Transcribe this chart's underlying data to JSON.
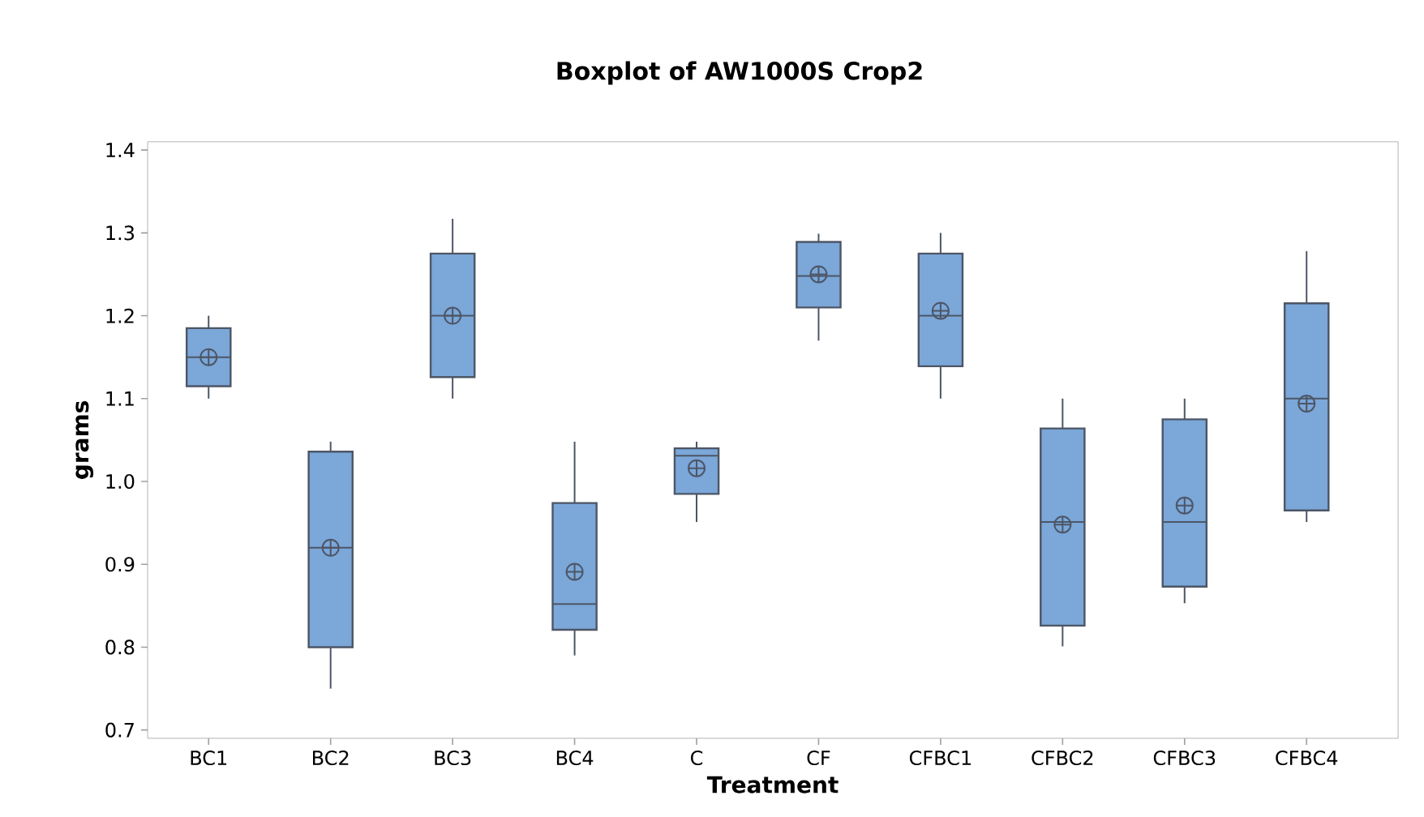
{
  "chart_data": {
    "type": "box",
    "title": "Boxplot of AW1000S Crop2",
    "xlabel": "Treatment",
    "ylabel": "grams",
    "categories": [
      "BC1",
      "BC2",
      "BC3",
      "BC4",
      "C",
      "CF",
      "CFBC1",
      "CFBC2",
      "CFBC3",
      "CFBC4"
    ],
    "color": "#7ba7d9",
    "boxes": [
      {
        "low": 1.1,
        "q1": 1.115,
        "median": 1.15,
        "q3": 1.185,
        "high": 1.2,
        "mean": 1.15
      },
      {
        "low": 0.75,
        "q1": 0.8,
        "median": 0.92,
        "q3": 1.036,
        "high": 1.048,
        "mean": 0.92
      },
      {
        "low": 1.1,
        "q1": 1.126,
        "median": 1.2,
        "q3": 1.275,
        "high": 1.317,
        "mean": 1.2
      },
      {
        "low": 0.79,
        "q1": 0.821,
        "median": 0.852,
        "q3": 0.974,
        "high": 1.048,
        "mean": 0.891
      },
      {
        "low": 0.951,
        "q1": 0.985,
        "median": 1.031,
        "q3": 1.04,
        "high": 1.048,
        "mean": 1.016
      },
      {
        "low": 1.17,
        "q1": 1.21,
        "median": 1.248,
        "q3": 1.289,
        "high": 1.299,
        "mean": 1.25
      },
      {
        "low": 1.1,
        "q1": 1.139,
        "median": 1.2,
        "q3": 1.275,
        "high": 1.3,
        "mean": 1.206
      },
      {
        "low": 0.801,
        "q1": 0.826,
        "median": 0.951,
        "q3": 1.064,
        "high": 1.1,
        "mean": 0.948
      },
      {
        "low": 0.853,
        "q1": 0.873,
        "median": 0.951,
        "q3": 1.075,
        "high": 1.1,
        "mean": 0.971
      },
      {
        "low": 0.951,
        "q1": 0.965,
        "median": 1.1,
        "q3": 1.215,
        "high": 1.278,
        "mean": 1.094
      }
    ],
    "ylim": [
      0.69,
      1.41
    ],
    "yticks": [
      {
        "value": 0.7,
        "label": "0.7"
      },
      {
        "value": 0.8,
        "label": "0.8"
      },
      {
        "value": 0.9,
        "label": "0.9"
      },
      {
        "value": 1.0,
        "label": "1.0"
      },
      {
        "value": 1.1,
        "label": "1.1"
      },
      {
        "value": 1.2,
        "label": "1.2"
      },
      {
        "value": 1.3,
        "label": "1.3"
      },
      {
        "value": 1.4,
        "label": "1.4"
      }
    ]
  }
}
